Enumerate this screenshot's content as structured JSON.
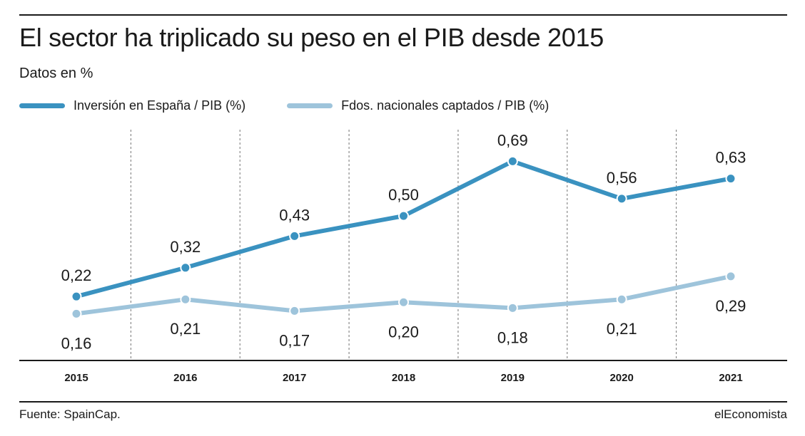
{
  "title": "El sector ha triplicado su peso en el PIB desde 2015",
  "subtitle": "Datos en %",
  "source": "Fuente: SpainCap.",
  "brand": "elEconomista",
  "chart_data": {
    "type": "line",
    "x": [
      "2015",
      "2016",
      "2017",
      "2018",
      "2019",
      "2020",
      "2021"
    ],
    "series": [
      {
        "name": "Inversión en España / PIB (%)",
        "color": "#3a92c0",
        "values": [
          0.22,
          0.32,
          0.43,
          0.5,
          0.69,
          0.56,
          0.63
        ],
        "labels": [
          "0,22",
          "0,32",
          "0,43",
          "0,50",
          "0,69",
          "0,56",
          "0,63"
        ],
        "label_position": "above"
      },
      {
        "name": "Fdos. nacionales captados / PIB (%)",
        "color": "#9ec4db",
        "values": [
          0.16,
          0.21,
          0.17,
          0.2,
          0.18,
          0.21,
          0.29
        ],
        "labels": [
          "0,16",
          "0,21",
          "0,17",
          "0,20",
          "0,18",
          "0,21",
          "0,29"
        ],
        "label_position": "below"
      }
    ],
    "legend": "top-left",
    "grid": "vertical-dotted",
    "ylim": [
      0,
      0.8
    ]
  }
}
